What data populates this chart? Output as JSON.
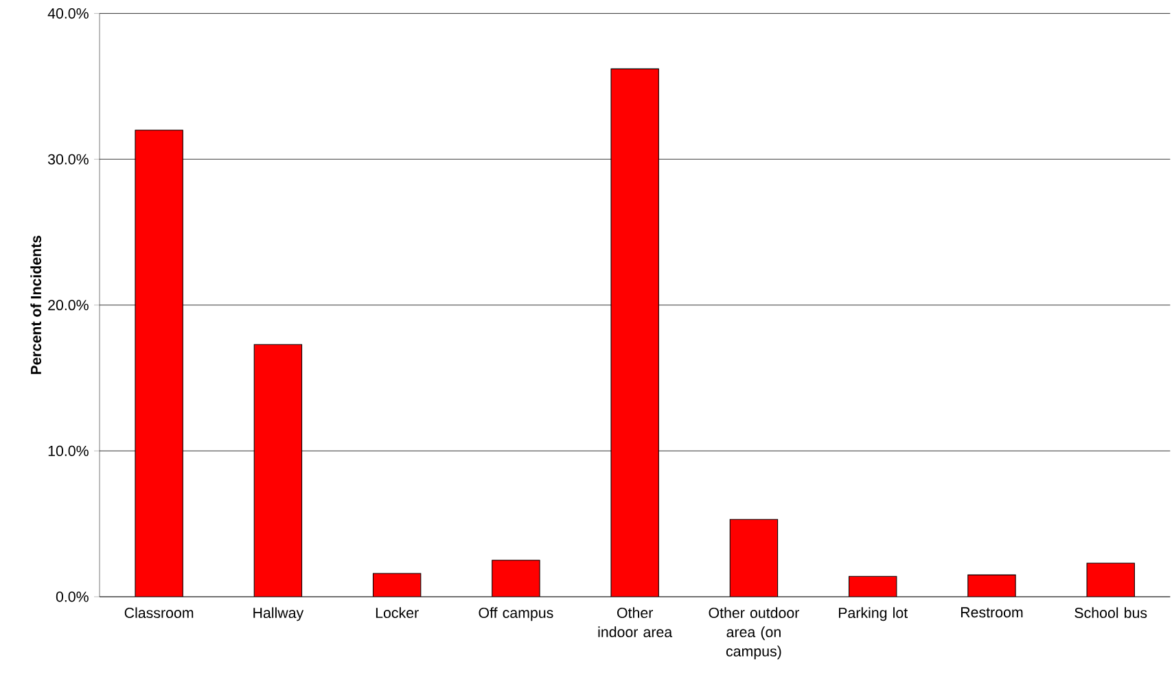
{
  "chart_data": {
    "type": "bar",
    "ylabel": "Percent of Incidents",
    "categories": [
      "Classroom",
      "Hallway",
      "Locker",
      "Off campus",
      "Other indoor area",
      "Other outdoor area (on campus)",
      "Parking lot",
      "Restroom",
      "School bus"
    ],
    "values": [
      32.0,
      17.3,
      1.6,
      2.5,
      36.2,
      5.3,
      1.4,
      1.5,
      2.3
    ],
    "color": "#ff0000",
    "ylim": [
      0,
      40
    ],
    "yticks": [
      {
        "value": 0,
        "label": "0.0%"
      },
      {
        "value": 10,
        "label": "10.0%"
      },
      {
        "value": 20,
        "label": "20.0%"
      },
      {
        "value": 30,
        "label": "30.0%"
      },
      {
        "value": 40,
        "label": "40.0%"
      }
    ],
    "grid": "y"
  }
}
